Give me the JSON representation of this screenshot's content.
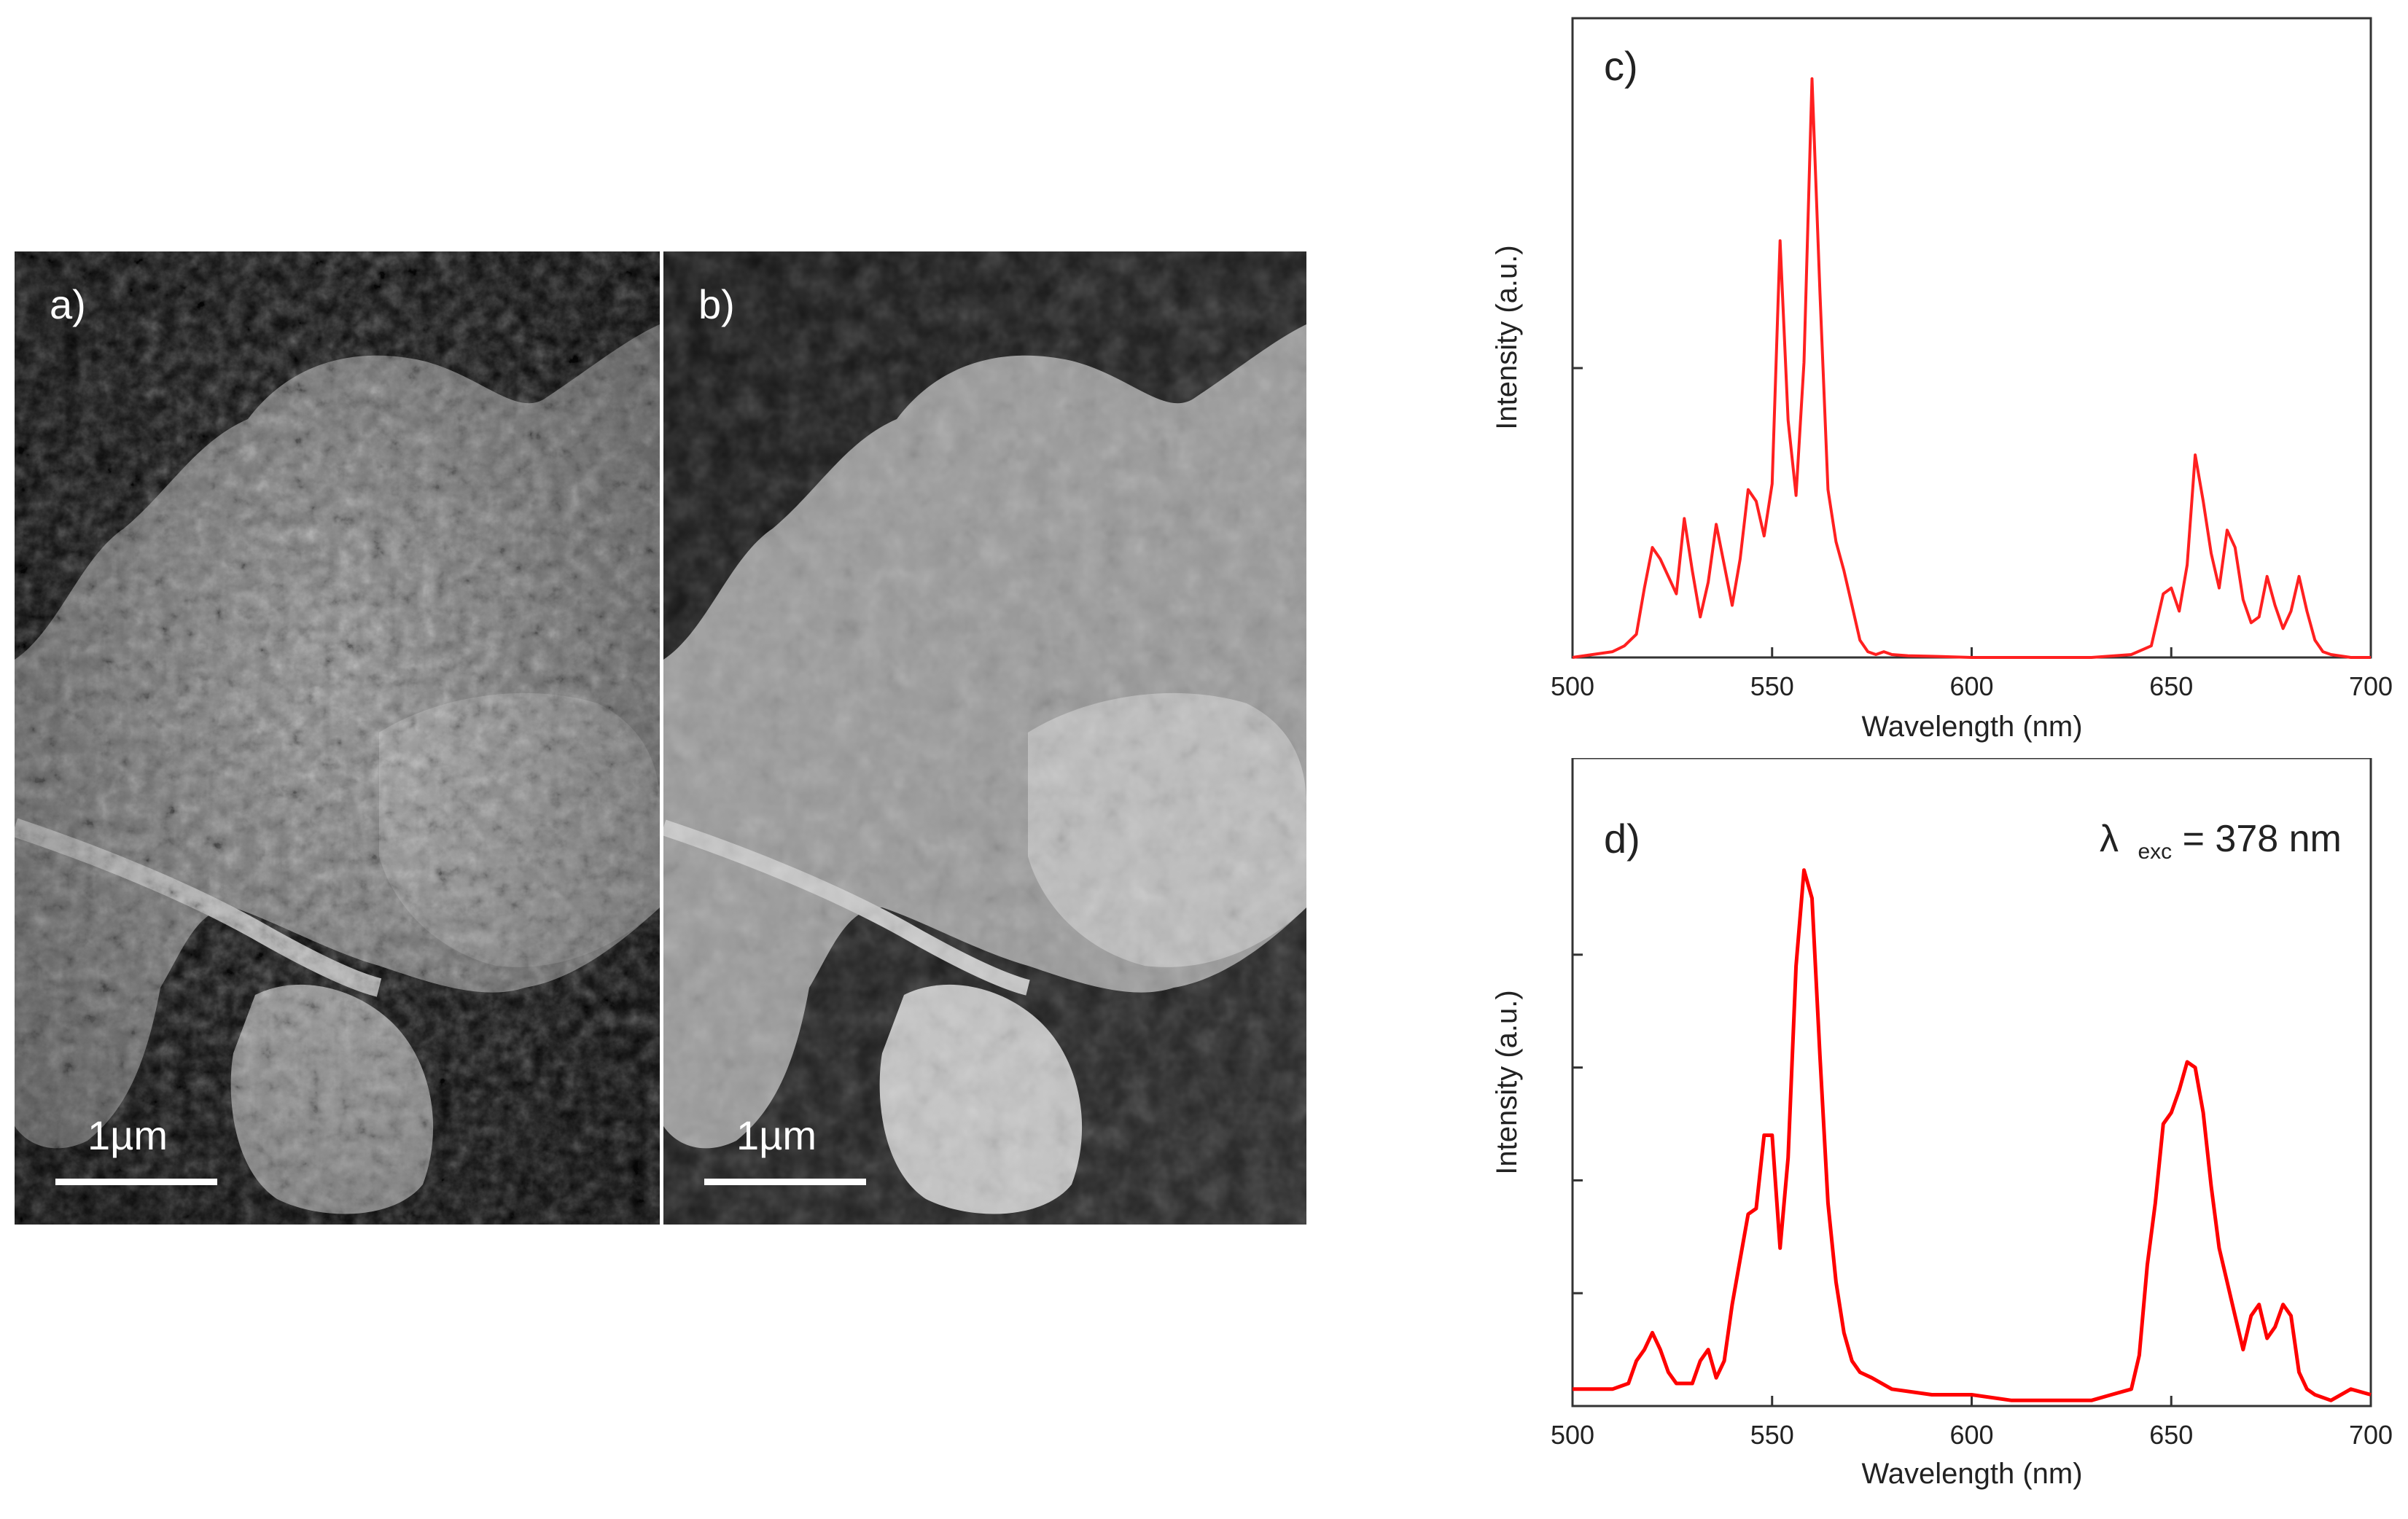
{
  "figure": {
    "panel_a": {
      "label": "a)",
      "scale_bar_label": "1µm"
    },
    "panel_b": {
      "label": "b)",
      "scale_bar_label": "1µm"
    }
  },
  "chart_data": [
    {
      "type": "line",
      "panel_label": "c)",
      "xlabel": "Wavelength (nm)",
      "ylabel": "Intensity (a.u.)",
      "xlim": [
        500,
        700
      ],
      "ylim": [
        0,
        100
      ],
      "x_ticks": [
        500,
        550,
        600,
        650,
        700
      ],
      "color": "#ff2020",
      "series": [
        {
          "x": [
            500,
            505,
            510,
            513,
            516,
            518,
            520,
            522,
            524,
            526,
            528,
            530,
            532,
            534,
            536,
            538,
            540,
            542,
            544,
            546,
            548,
            550,
            552,
            554,
            556,
            558,
            560,
            562,
            564,
            566,
            568,
            570,
            572,
            574,
            576,
            578,
            580,
            584,
            590,
            600,
            610,
            620,
            630,
            640,
            645,
            648,
            650,
            652,
            654,
            656,
            658,
            660,
            662,
            664,
            666,
            668,
            670,
            672,
            674,
            676,
            678,
            680,
            682,
            684,
            686,
            688,
            690,
            695,
            700
          ],
          "y": [
            0,
            0.5,
            1,
            2,
            4,
            12,
            19,
            17,
            14,
            11,
            24,
            15,
            7,
            13,
            23,
            16,
            9,
            17,
            29,
            27,
            21,
            30,
            72,
            41,
            28,
            51,
            100,
            63,
            29,
            20,
            15,
            9,
            3,
            1,
            0.5,
            1,
            0.5,
            0.3,
            0.2,
            0,
            0,
            0,
            0,
            0.5,
            2,
            11,
            12,
            8,
            16,
            35,
            27,
            18,
            12,
            22,
            19,
            10,
            6,
            7,
            14,
            9,
            5,
            8,
            14,
            8,
            3,
            1,
            0.5,
            0,
            0
          ]
        }
      ]
    },
    {
      "type": "line",
      "panel_label": "d)",
      "annotation_lambda": "λ",
      "annotation_sub": "exc",
      "annotation_rest": "= 378 nm",
      "xlabel": "Wavelength (nm)",
      "ylabel": "Intensity (a.u.)",
      "xlim": [
        500,
        700
      ],
      "ylim": [
        0,
        100
      ],
      "x_ticks": [
        500,
        550,
        600,
        650,
        700
      ],
      "color": "#ff0000",
      "series": [
        {
          "x": [
            500,
            505,
            510,
            514,
            516,
            518,
            520,
            522,
            524,
            526,
            528,
            530,
            532,
            534,
            536,
            538,
            540,
            542,
            544,
            546,
            548,
            550,
            552,
            554,
            556,
            558,
            560,
            562,
            564,
            566,
            568,
            570,
            572,
            575,
            580,
            590,
            600,
            610,
            620,
            630,
            635,
            640,
            642,
            644,
            646,
            648,
            650,
            652,
            654,
            656,
            658,
            660,
            662,
            664,
            666,
            668,
            670,
            672,
            674,
            676,
            678,
            680,
            682,
            684,
            686,
            690,
            695,
            700
          ],
          "y": [
            3,
            3,
            3,
            4,
            8,
            10,
            13,
            10,
            6,
            4,
            4,
            4,
            8,
            10,
            5,
            8,
            18,
            26,
            34,
            35,
            48,
            48,
            28,
            44,
            78,
            95,
            90,
            62,
            36,
            22,
            13,
            8,
            6,
            5,
            3,
            2,
            2,
            1,
            1,
            1,
            2,
            3,
            9,
            25,
            36,
            50,
            52,
            56,
            61,
            60,
            52,
            39,
            28,
            22,
            16,
            10,
            16,
            18,
            12,
            14,
            18,
            16,
            6,
            3,
            2,
            1,
            3,
            2
          ]
        }
      ]
    }
  ]
}
